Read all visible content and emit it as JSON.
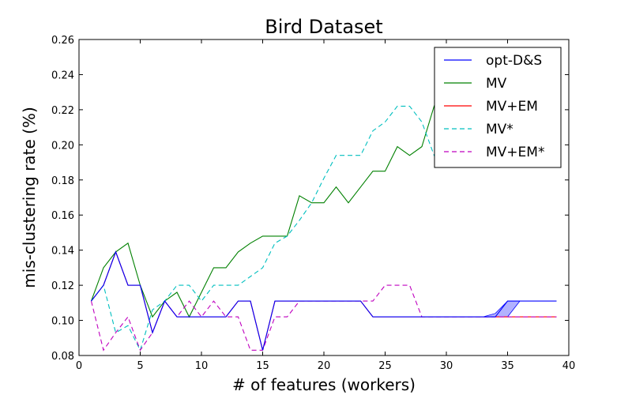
{
  "chart_data": {
    "type": "line",
    "title": "Bird Dataset",
    "xlabel": "# of features (workers)",
    "ylabel": "mis-clustering rate (%)",
    "xlim": [
      0,
      40
    ],
    "ylim": [
      0.08,
      0.26
    ],
    "xticks": [
      0,
      5,
      10,
      15,
      20,
      25,
      30,
      35,
      40
    ],
    "yticks": [
      0.08,
      0.1,
      0.12,
      0.14,
      0.16,
      0.18,
      0.2,
      0.22,
      0.24,
      0.26
    ],
    "xtick_labels": [
      "0",
      "5",
      "10",
      "15",
      "20",
      "25",
      "30",
      "35",
      "40"
    ],
    "ytick_labels": [
      "0.08",
      "0.10",
      "0.12",
      "0.14",
      "0.16",
      "0.18",
      "0.20",
      "0.22",
      "0.24",
      "0.26"
    ],
    "grid": false,
    "legend_position": "top-right",
    "x": [
      1,
      2,
      3,
      4,
      5,
      6,
      7,
      8,
      9,
      10,
      11,
      12,
      13,
      14,
      15,
      16,
      17,
      18,
      19,
      20,
      21,
      22,
      23,
      24,
      25,
      26,
      27,
      28,
      29,
      30,
      31,
      32,
      33,
      34,
      35,
      36,
      37,
      38,
      39
    ],
    "series": [
      {
        "name": "opt-D&S",
        "color": "#0000ff",
        "dash": "solid",
        "values": [
          0.111,
          0.12,
          0.139,
          0.12,
          0.12,
          0.093,
          0.111,
          0.102,
          0.102,
          0.102,
          0.102,
          0.102,
          0.111,
          0.111,
          0.083,
          0.111,
          0.111,
          0.111,
          0.111,
          0.111,
          0.111,
          0.111,
          0.111,
          0.102,
          0.102,
          0.102,
          0.102,
          0.102,
          0.102,
          0.102,
          0.102,
          0.102,
          0.102,
          0.102,
          0.111,
          0.111,
          0.111,
          0.111,
          0.111
        ],
        "band_low": [
          0.111,
          0.12,
          0.139,
          0.12,
          0.12,
          0.093,
          0.111,
          0.102,
          0.102,
          0.102,
          0.102,
          0.102,
          0.111,
          0.111,
          0.083,
          0.111,
          0.111,
          0.111,
          0.111,
          0.111,
          0.111,
          0.111,
          0.111,
          0.102,
          0.102,
          0.102,
          0.102,
          0.102,
          0.102,
          0.102,
          0.102,
          0.102,
          0.102,
          0.102,
          0.102,
          0.111,
          0.111,
          0.111,
          0.111
        ],
        "band_high": [
          0.111,
          0.12,
          0.139,
          0.12,
          0.12,
          0.093,
          0.111,
          0.102,
          0.102,
          0.102,
          0.102,
          0.102,
          0.111,
          0.111,
          0.083,
          0.111,
          0.111,
          0.111,
          0.111,
          0.111,
          0.111,
          0.111,
          0.111,
          0.102,
          0.102,
          0.102,
          0.102,
          0.102,
          0.102,
          0.102,
          0.102,
          0.102,
          0.102,
          0.104,
          0.111,
          0.111,
          0.111,
          0.111,
          0.111
        ]
      },
      {
        "name": "MV",
        "color": "#008000",
        "dash": "solid",
        "values": [
          0.111,
          0.13,
          0.139,
          0.144,
          0.12,
          0.102,
          0.111,
          0.116,
          0.102,
          0.116,
          0.13,
          0.13,
          0.139,
          0.144,
          0.148,
          0.148,
          0.148,
          0.171,
          0.167,
          0.167,
          0.176,
          0.167,
          0.176,
          0.185,
          0.185,
          0.199,
          0.194,
          0.199,
          0.222,
          0.213,
          0.218,
          0.213,
          0.218,
          0.218,
          0.218,
          0.218,
          0.218,
          0.218,
          0.218
        ]
      },
      {
        "name": "MV+EM",
        "color": "#ff0000",
        "dash": "solid",
        "values": [
          0.111,
          0.12,
          0.139,
          0.12,
          0.12,
          0.093,
          0.111,
          0.102,
          0.102,
          0.102,
          0.102,
          0.102,
          0.111,
          0.111,
          0.083,
          0.111,
          0.111,
          0.111,
          0.111,
          0.111,
          0.111,
          0.111,
          0.111,
          0.102,
          0.102,
          0.102,
          0.102,
          0.102,
          0.102,
          0.102,
          0.102,
          0.102,
          0.102,
          0.102,
          0.102,
          0.102,
          0.102,
          0.102,
          0.102
        ]
      },
      {
        "name": "MV*",
        "color": "#00bfbf",
        "dash": "dashed",
        "values": [
          0.111,
          0.12,
          0.093,
          0.097,
          0.083,
          0.106,
          0.111,
          0.12,
          0.12,
          0.111,
          0.12,
          0.12,
          0.12,
          0.125,
          0.13,
          0.144,
          0.148,
          0.157,
          0.167,
          0.181,
          0.194,
          0.194,
          0.194,
          0.208,
          0.213,
          0.222,
          0.222,
          0.213,
          0.194,
          0.199,
          0.199,
          0.199,
          0.199,
          0.199,
          0.199,
          0.199,
          0.199,
          0.199,
          0.199
        ]
      },
      {
        "name": "MV+EM*",
        "color": "#bf00bf",
        "dash": "dashed",
        "values": [
          0.111,
          0.083,
          0.093,
          0.102,
          0.083,
          0.093,
          0.111,
          0.102,
          0.111,
          0.102,
          0.111,
          0.102,
          0.102,
          0.083,
          0.083,
          0.102,
          0.102,
          0.111,
          0.111,
          0.111,
          0.111,
          0.111,
          0.111,
          0.111,
          0.12,
          0.12,
          0.12,
          0.102,
          0.102,
          0.102,
          0.102,
          0.102,
          0.102,
          0.102,
          0.102,
          0.102,
          0.102,
          0.102,
          0.102
        ]
      }
    ]
  }
}
